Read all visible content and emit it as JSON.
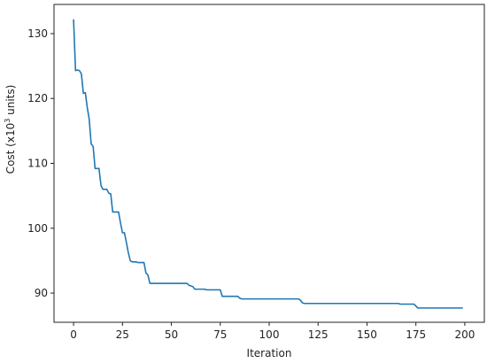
{
  "chart_data": {
    "type": "line",
    "title": "",
    "xlabel": "Iteration",
    "ylabel_prefix": "Cost  (x10",
    "ylabel_sup": "3",
    "ylabel_suffix": " units)",
    "xlim": [
      -10,
      210
    ],
    "ylim": [
      85.5,
      134.5
    ],
    "xticks": [
      0,
      25,
      50,
      75,
      100,
      125,
      150,
      175,
      200
    ],
    "yticks": [
      90,
      100,
      110,
      120,
      130
    ],
    "grid": false,
    "line_color": "#1f77b4",
    "series": [
      {
        "x": [
          0,
          1,
          2,
          3,
          4,
          5,
          6,
          7,
          8,
          9,
          10,
          11,
          12,
          13,
          14,
          15,
          16,
          17,
          18,
          19,
          20,
          21,
          22,
          23,
          24,
          25,
          26,
          27,
          28,
          29,
          30,
          31,
          32,
          33,
          34,
          35,
          36,
          37,
          38,
          39,
          40,
          45,
          50,
          55,
          58,
          59,
          61,
          62,
          63,
          67,
          68,
          75,
          76,
          77,
          84,
          85,
          86,
          115,
          116,
          117,
          118,
          166,
          167,
          174,
          175,
          176,
          199
        ],
        "y": [
          132.2,
          124.3,
          124.4,
          124.3,
          123.8,
          120.8,
          120.9,
          118.6,
          116.8,
          113.0,
          112.6,
          109.2,
          109.2,
          109.2,
          106.6,
          106.0,
          106.0,
          106.0,
          105.4,
          105.3,
          102.5,
          102.5,
          102.5,
          102.5,
          100.8,
          99.3,
          99.3,
          97.8,
          96.2,
          95.0,
          94.8,
          94.8,
          94.8,
          94.7,
          94.7,
          94.7,
          94.7,
          93.1,
          92.8,
          91.5,
          91.5,
          91.5,
          91.5,
          91.5,
          91.5,
          91.2,
          91.0,
          90.6,
          90.6,
          90.6,
          90.5,
          90.5,
          89.5,
          89.5,
          89.5,
          89.2,
          89.1,
          89.1,
          88.9,
          88.5,
          88.4,
          88.4,
          88.3,
          88.3,
          88.0,
          87.7,
          87.7
        ]
      }
    ]
  }
}
